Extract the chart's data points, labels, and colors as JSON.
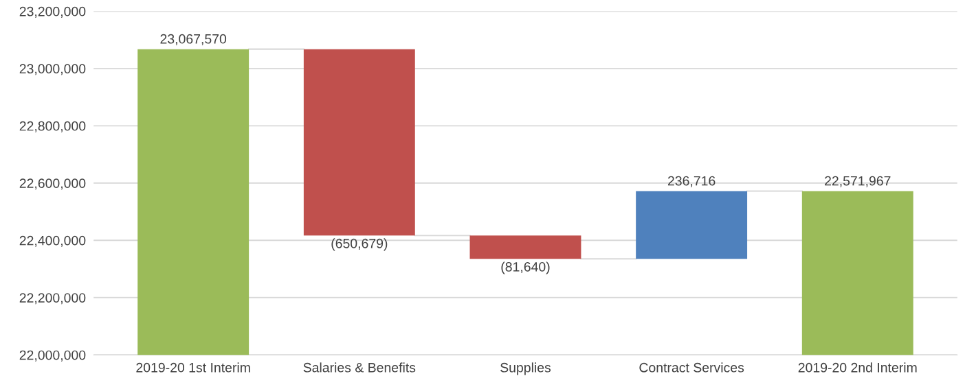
{
  "chart_data": {
    "type": "bar",
    "categories": [
      "2019-20 1st Interim",
      "Salaries & Benefits",
      "Supplies",
      "Contract Services",
      "2019-20 2nd Interim"
    ],
    "values": [
      23067570,
      -650679,
      -81640,
      236716,
      22571967
    ],
    "base": [
      0,
      23067570,
      22416891,
      22335251,
      0
    ],
    "colors": [
      "#9bbb59",
      "#c0504d",
      "#c0504d",
      "#4f81bd",
      "#9bbb59"
    ],
    "value_labels": [
      "23,067,570",
      "(650,679)",
      "(81,640)",
      "236,716",
      "22,571,967"
    ],
    "ylim": [
      22000000,
      23200000
    ],
    "yticks": [
      {
        "value": 22000000,
        "label": "22,000,000"
      },
      {
        "value": 22200000,
        "label": "22,200,000"
      },
      {
        "value": 22400000,
        "label": "22,400,000"
      },
      {
        "value": 22600000,
        "label": "22,600,000"
      },
      {
        "value": 22800000,
        "label": "22,800,000"
      },
      {
        "value": 23000000,
        "label": "23,000,000"
      },
      {
        "value": 23200000,
        "label": "23,200,000"
      }
    ],
    "grid": "y"
  }
}
